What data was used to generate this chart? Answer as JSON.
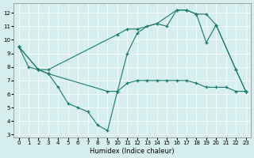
{
  "xlabel": "Humidex (Indice chaleur)",
  "bg_color": "#d6eeee",
  "grid_color": "#ffffff",
  "line_color": "#1a7a6e",
  "xlim": [
    -0.5,
    23.5
  ],
  "ylim": [
    2.8,
    12.7
  ],
  "xticks": [
    0,
    1,
    2,
    3,
    4,
    5,
    6,
    7,
    8,
    9,
    10,
    11,
    12,
    13,
    14,
    15,
    16,
    17,
    18,
    19,
    20,
    21,
    22,
    23
  ],
  "yticks": [
    3,
    4,
    5,
    6,
    7,
    8,
    9,
    10,
    11,
    12
  ],
  "line1_x": [
    0,
    1,
    2,
    3,
    4,
    5,
    6,
    7,
    8,
    9,
    10,
    11,
    12,
    13,
    14,
    15,
    16,
    17,
    18,
    19,
    20,
    22,
    23
  ],
  "line1_y": [
    9.5,
    8.0,
    7.8,
    7.5,
    6.5,
    5.3,
    5.0,
    4.7,
    3.7,
    3.3,
    6.2,
    9.0,
    10.5,
    11.0,
    11.2,
    11.0,
    12.2,
    12.2,
    11.9,
    9.8,
    11.1,
    7.8,
    6.2
  ],
  "line2_x": [
    0,
    2,
    3,
    10,
    11,
    12,
    14,
    16,
    17,
    18,
    19,
    20,
    22,
    23
  ],
  "line2_y": [
    9.5,
    7.8,
    7.8,
    10.4,
    10.8,
    10.8,
    11.2,
    12.2,
    12.2,
    11.9,
    11.9,
    11.1,
    7.8,
    6.2
  ],
  "line3_x": [
    0,
    2,
    3,
    9,
    10,
    11,
    12,
    13,
    14,
    15,
    16,
    17,
    18,
    19,
    20,
    21,
    22,
    23
  ],
  "line3_y": [
    9.5,
    7.8,
    7.5,
    6.2,
    6.2,
    6.8,
    7.0,
    7.0,
    7.0,
    7.0,
    7.0,
    7.0,
    6.8,
    6.5,
    6.5,
    6.5,
    6.2,
    6.2
  ]
}
